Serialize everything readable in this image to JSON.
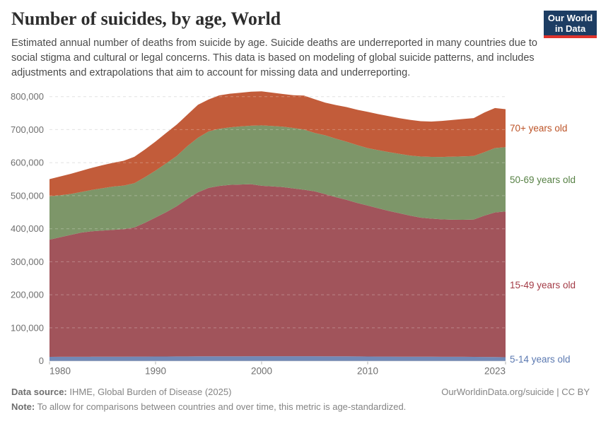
{
  "header": {
    "title": "Number of suicides, by age, World",
    "subtitle": "Estimated annual number of deaths from suicide by age. Suicide deaths are underreported in many countries due to social stigma and cultural or legal concerns. This data is based on modeling of global suicide patterns, and includes adjustments and extrapolations that aim to account for missing data and underreporting.",
    "logo": {
      "line1": "Our World",
      "line2": "in Data"
    }
  },
  "colors": {
    "logo_bg": "#1d3d63",
    "logo_accent": "#e0332c",
    "gridline": "#dcdcdc",
    "axis_text": "#6f6f6f",
    "tick": "#b0b0b0"
  },
  "chart_data": {
    "type": "area",
    "stacked": true,
    "title": "Number of suicides, by age, World",
    "xlabel": "",
    "ylabel": "",
    "grid": "dashed",
    "legend_position": "right",
    "ylim": [
      0,
      800000
    ],
    "x": [
      1980,
      1981,
      1982,
      1983,
      1984,
      1985,
      1986,
      1987,
      1988,
      1989,
      1990,
      1991,
      1992,
      1993,
      1994,
      1995,
      1996,
      1997,
      1998,
      1999,
      2000,
      2001,
      2002,
      2003,
      2004,
      2005,
      2006,
      2007,
      2008,
      2009,
      2010,
      2011,
      2012,
      2013,
      2014,
      2015,
      2016,
      2017,
      2018,
      2019,
      2020,
      2021,
      2022,
      2023
    ],
    "series": [
      {
        "name": "5-14 years old",
        "color": "#7289b6",
        "label_color": "#5b79b1",
        "values": [
          12000,
          12100,
          12200,
          12300,
          12400,
          12500,
          12600,
          12700,
          12800,
          12900,
          13000,
          13100,
          13200,
          13300,
          13400,
          13500,
          13600,
          13700,
          13800,
          13900,
          14000,
          14000,
          14000,
          14000,
          14000,
          14000,
          13800,
          13600,
          13400,
          13200,
          13000,
          12900,
          12800,
          12700,
          12600,
          12500,
          12400,
          12300,
          12200,
          12100,
          12000,
          11700,
          11300,
          11000
        ]
      },
      {
        "name": "15-49 years old",
        "color": "#a1545b",
        "label_color": "#a33b46",
        "values": [
          355000,
          362000,
          369000,
          376000,
          380000,
          382000,
          384000,
          386000,
          391000,
          405000,
          421000,
          437000,
          455000,
          477000,
          497000,
          510000,
          516000,
          519000,
          520000,
          521000,
          516000,
          514000,
          512000,
          508000,
          504000,
          499000,
          491000,
          482000,
          474000,
          465000,
          457000,
          449000,
          441000,
          434000,
          427000,
          421000,
          418000,
          416000,
          415000,
          415000,
          416000,
          428000,
          438000,
          441000
        ]
      },
      {
        "name": "50-69 years old",
        "color": "#7d9669",
        "label_color": "#578145",
        "values": [
          131000,
          127000,
          124000,
          123000,
          125000,
          128000,
          131000,
          132000,
          134000,
          138000,
          142000,
          148000,
          152000,
          160000,
          165000,
          171000,
          173000,
          174000,
          176000,
          177000,
          183000,
          183000,
          183000,
          183000,
          182000,
          177000,
          178000,
          177000,
          176000,
          175000,
          174000,
          176000,
          178000,
          180000,
          182000,
          185000,
          187000,
          189000,
          191000,
          192000,
          192000,
          192000,
          195000,
          195000
        ]
      },
      {
        "name": "70+ years old",
        "color": "#c25c3a",
        "label_color": "#bc5327",
        "values": [
          52000,
          57000,
          61000,
          64000,
          67000,
          70000,
          72000,
          75000,
          80000,
          84000,
          88000,
          92000,
          95000,
          95000,
          100000,
          97000,
          101000,
          102000,
          102000,
          103000,
          103000,
          101000,
          99000,
          99000,
          103000,
          102000,
          99000,
          102000,
          105000,
          107000,
          110000,
          109000,
          109000,
          108000,
          108000,
          107000,
          107000,
          109000,
          111000,
          113000,
          115000,
          120000,
          121000,
          115000
        ]
      }
    ],
    "yticks": [
      {
        "value": 0,
        "label": "0"
      },
      {
        "value": 100000,
        "label": "100,000"
      },
      {
        "value": 200000,
        "label": "200,000"
      },
      {
        "value": 300000,
        "label": "300,000"
      },
      {
        "value": 400000,
        "label": "400,000"
      },
      {
        "value": 500000,
        "label": "500,000"
      },
      {
        "value": 600000,
        "label": "600,000"
      },
      {
        "value": 700000,
        "label": "700,000"
      },
      {
        "value": 800000,
        "label": "800,000"
      }
    ],
    "xticks": [
      {
        "value": 1980,
        "label": "1980",
        "align": "start"
      },
      {
        "value": 1990,
        "label": "1990",
        "align": "middle"
      },
      {
        "value": 2000,
        "label": "2000",
        "align": "middle"
      },
      {
        "value": 2010,
        "label": "2010",
        "align": "middle"
      },
      {
        "value": 2023,
        "label": "2023",
        "align": "end"
      }
    ]
  },
  "footer": {
    "datasource_label": "Data source:",
    "datasource_text": " IHME, Global Burden of Disease (2025)",
    "note_label": "Note:",
    "note_text": " To allow for comparisons between countries and over time, this metric is age-standardized.",
    "citation": "OurWorldinData.org/suicide | CC BY"
  }
}
